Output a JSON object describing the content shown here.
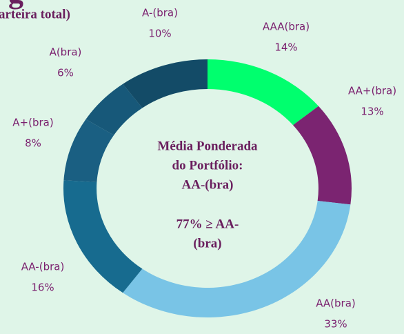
{
  "chart_data": {
    "type": "donut",
    "title": "g",
    "subtitle": "arteira total)",
    "categories": [
      "AAA(bra)",
      "AA+(bra)",
      "AA(bra)",
      "AA-(bra)",
      "A+(bra)",
      "A(bra)",
      "A-(bra)"
    ],
    "values": [
      14,
      13,
      33,
      16,
      8,
      6,
      10
    ],
    "value_labels": [
      "14%",
      "13%",
      "33%",
      "16%",
      "8%",
      "6%",
      "10%"
    ],
    "colors": [
      "#00ff6e",
      "#7b2471",
      "#79c4e6",
      "#176b8f",
      "#1a5f82",
      "#175879",
      "#134b67"
    ],
    "center_text": [
      "Média Ponderada",
      "do Portfólio:",
      "AA-(bra)",
      "77% ≥ AA-",
      "(bra)"
    ]
  }
}
